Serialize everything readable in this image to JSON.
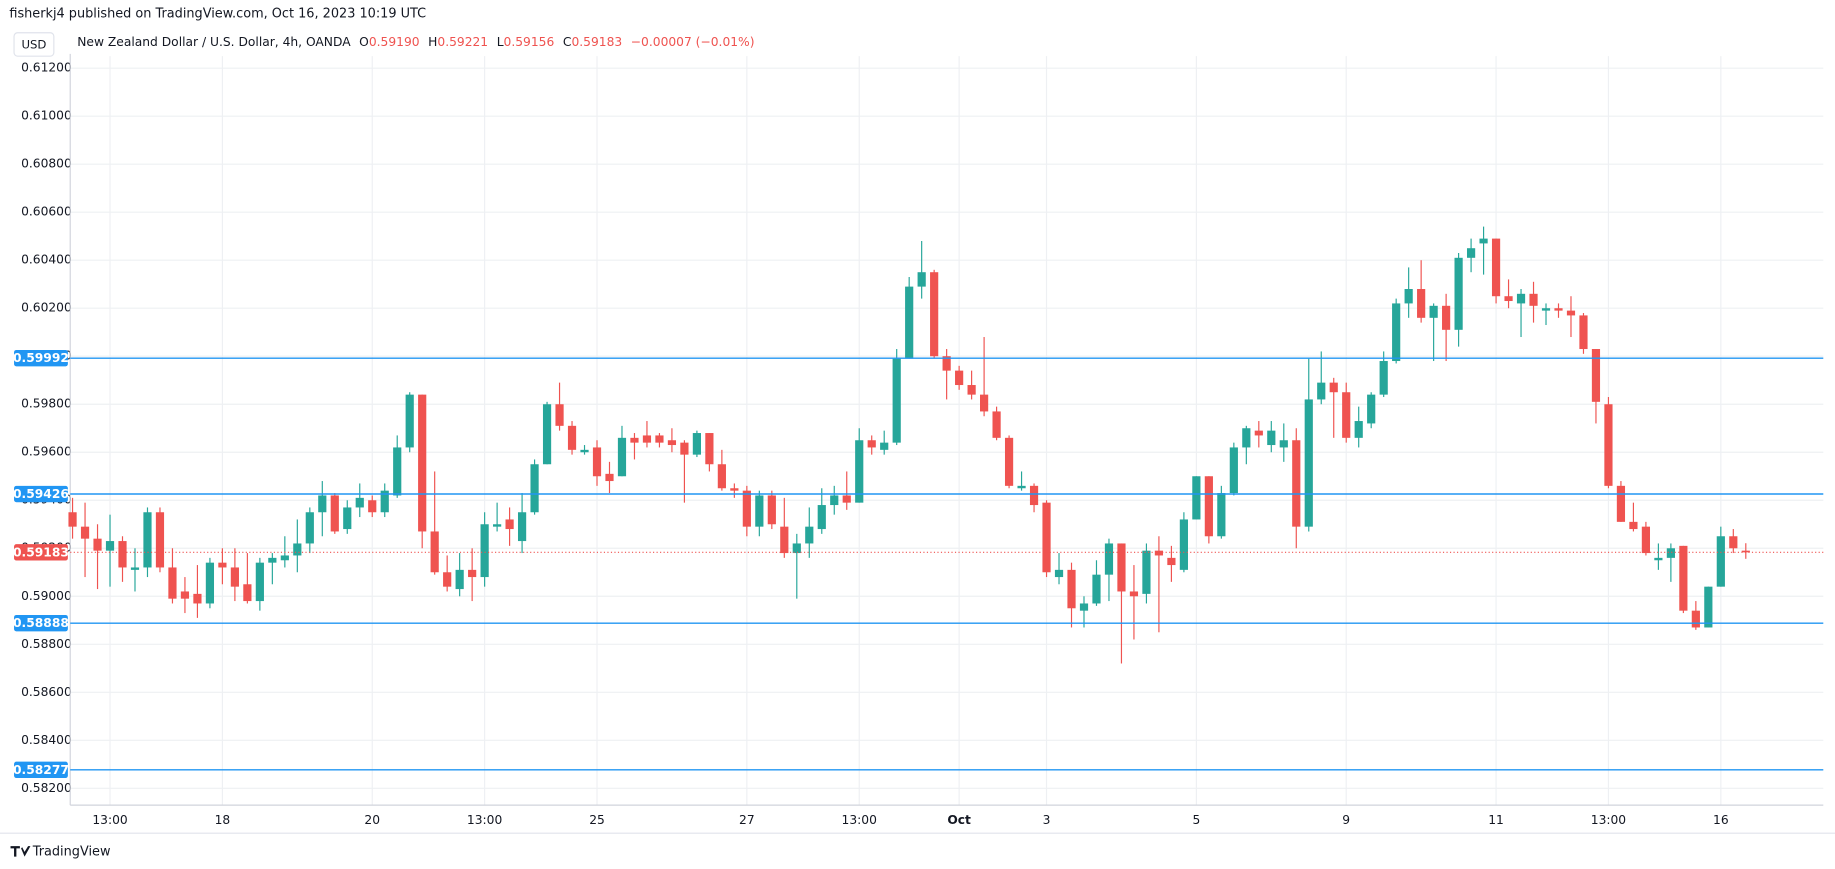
{
  "header": {
    "publisher": "fisherkj4 published on TradingView.com, Oct 16, 2023 10:19 UTC",
    "currency": "USD",
    "ohlc": [
      {
        "key": "O",
        "value": "0.59190"
      },
      {
        "key": "H",
        "value": "0.59221"
      },
      {
        "key": "L",
        "value": "0.59156"
      },
      {
        "key": "C",
        "value": "0.59183"
      }
    ],
    "change": "−0.00007 (−0.01%)",
    "footer": "TradingView"
  },
  "chart_data": {
    "type": "candlestick",
    "title": "New Zealand Dollar / U.S. Dollar, 4h, OANDA",
    "up_color": "#26a69a",
    "down_color": "#ef5350",
    "categories": [
      null,
      null,
      null,
      "13:00",
      null,
      null,
      null,
      null,
      null,
      null,
      null,
      null,
      "18",
      null,
      null,
      null,
      null,
      null,
      null,
      null,
      null,
      null,
      null,
      null,
      "20",
      null,
      null,
      null,
      null,
      null,
      null,
      null,
      null,
      "13:00",
      null,
      null,
      null,
      null,
      null,
      null,
      null,
      null,
      "25",
      null,
      null,
      null,
      null,
      null,
      null,
      null,
      null,
      null,
      null,
      null,
      "27",
      null,
      null,
      null,
      null,
      null,
      null,
      null,
      null,
      "13:00",
      null,
      null,
      null,
      null,
      null,
      null,
      null,
      "Oct",
      null,
      null,
      null,
      null,
      null,
      null,
      "3",
      null,
      null,
      null,
      null,
      null,
      null,
      null,
      null,
      null,
      null,
      null,
      "5",
      null,
      null,
      null,
      null,
      null,
      null,
      null,
      null,
      null,
      null,
      null,
      "9",
      null,
      null,
      null,
      null,
      null,
      null,
      null,
      null,
      null,
      null,
      null,
      "11",
      null,
      null,
      null,
      null,
      null,
      null,
      null,
      null,
      "13:00",
      null,
      null,
      null,
      null,
      null,
      null,
      null,
      null,
      "16",
      null,
      null
    ],
    "open": [
      0.5935,
      0.5929,
      0.5924,
      0.5919,
      0.5923,
      0.5911,
      0.5912,
      0.5935,
      0.5912,
      0.5902,
      0.5901,
      0.5897,
      0.5914,
      0.5912,
      0.5905,
      0.5898,
      0.5914,
      0.5915,
      0.5917,
      0.5922,
      0.5935,
      0.5942,
      0.5928,
      0.5937,
      0.594,
      0.5935,
      0.5942,
      0.5962,
      0.5984,
      0.5927,
      0.591,
      0.5903,
      0.5911,
      0.5908,
      0.5929,
      0.5932,
      0.5923,
      0.5935,
      0.5955,
      0.598,
      0.5971,
      0.596,
      0.5962,
      0.5951,
      0.595,
      0.5966,
      0.5967,
      0.5967,
      0.5965,
      0.5964,
      0.5959,
      0.5968,
      0.5955,
      0.5945,
      0.5944,
      0.5929,
      0.5942,
      0.5929,
      0.5918,
      0.5922,
      0.5928,
      0.5938,
      0.5942,
      0.5939,
      0.5965,
      0.5961,
      0.5964,
      0.5999,
      0.6029,
      0.6035,
      0.6,
      0.5994,
      0.5988,
      0.5984,
      0.5977,
      0.5966,
      0.5945,
      0.5946,
      0.5939,
      0.5908,
      0.5911,
      0.5894,
      0.5897,
      0.5909,
      0.5922,
      0.5902,
      0.5901,
      0.5919,
      0.5916,
      0.5911,
      0.5932,
      0.595,
      0.5925,
      0.5943,
      0.5962,
      0.5969,
      0.5963,
      0.5962,
      0.5965,
      0.5929,
      0.5982,
      0.5989,
      0.5985,
      0.5966,
      0.5972,
      0.5984,
      0.5998,
      0.6022,
      0.6028,
      0.6016,
      0.6021,
      0.6011,
      0.6041,
      0.6047,
      0.6049,
      0.6025,
      0.6022,
      0.6026,
      0.6019,
      0.602,
      0.6019,
      0.6017,
      0.6003,
      0.598,
      0.5946,
      0.5931,
      0.5929,
      0.5915,
      0.5916,
      0.5921,
      0.5894,
      0.5887,
      0.5904,
      0.5925,
      0.5919
    ],
    "high": [
      0.5941,
      0.5939,
      0.593,
      0.5934,
      0.5925,
      0.592,
      0.5937,
      0.5937,
      0.592,
      0.5908,
      0.5913,
      0.5916,
      0.592,
      0.592,
      0.5918,
      0.5916,
      0.5918,
      0.5925,
      0.5932,
      0.5937,
      0.5948,
      0.5943,
      0.594,
      0.5947,
      0.5942,
      0.5947,
      0.5967,
      0.5985,
      0.5984,
      0.5952,
      0.5917,
      0.5918,
      0.592,
      0.5935,
      0.5939,
      0.5937,
      0.5943,
      0.5957,
      0.5981,
      0.5989,
      0.5973,
      0.5963,
      0.5965,
      0.5956,
      0.5971,
      0.5968,
      0.5973,
      0.5968,
      0.597,
      0.5965,
      0.5969,
      0.5968,
      0.5961,
      0.5947,
      0.5946,
      0.5944,
      0.5944,
      0.5941,
      0.5926,
      0.5937,
      0.5945,
      0.5946,
      0.5952,
      0.597,
      0.5967,
      0.5969,
      0.6003,
      0.6033,
      0.6048,
      0.6036,
      0.6003,
      0.5996,
      0.5994,
      0.6008,
      0.5979,
      0.5967,
      0.5952,
      0.5947,
      0.594,
      0.5918,
      0.5914,
      0.59,
      0.5915,
      0.5924,
      0.5922,
      0.5913,
      0.5922,
      0.5925,
      0.5921,
      0.5935,
      0.595,
      0.595,
      0.5946,
      0.5964,
      0.5971,
      0.5973,
      0.5973,
      0.5972,
      0.597,
      0.5999,
      0.6002,
      0.5991,
      0.5989,
      0.5979,
      0.5985,
      0.6002,
      0.6024,
      0.6037,
      0.604,
      0.6022,
      0.6026,
      0.6043,
      0.6049,
      0.6054,
      0.6049,
      0.6032,
      0.6028,
      0.6031,
      0.6022,
      0.6022,
      0.6025,
      0.6018,
      0.6003,
      0.5983,
      0.5948,
      0.5939,
      0.5931,
      0.5922,
      0.5922,
      0.5921,
      0.5898,
      0.5904,
      0.5929,
      0.5928,
      0.59221
    ],
    "low": [
      0.5924,
      0.5908,
      0.5903,
      0.5904,
      0.5906,
      0.5902,
      0.5908,
      0.591,
      0.5897,
      0.5893,
      0.5891,
      0.5895,
      0.5905,
      0.5898,
      0.5897,
      0.5894,
      0.5905,
      0.5912,
      0.591,
      0.5918,
      0.5925,
      0.5926,
      0.5926,
      0.5933,
      0.5933,
      0.5933,
      0.5941,
      0.596,
      0.592,
      0.5909,
      0.5902,
      0.59,
      0.5898,
      0.5904,
      0.5927,
      0.5921,
      0.5918,
      0.5934,
      0.5955,
      0.5969,
      0.5959,
      0.5959,
      0.5946,
      0.5943,
      0.595,
      0.5957,
      0.5962,
      0.5962,
      0.596,
      0.5939,
      0.5958,
      0.5952,
      0.5944,
      0.5941,
      0.5925,
      0.5925,
      0.5928,
      0.5916,
      0.5899,
      0.5916,
      0.5926,
      0.5934,
      0.5936,
      0.5939,
      0.5959,
      0.5959,
      0.5963,
      0.5999,
      0.6024,
      0.5999,
      0.5982,
      0.5986,
      0.5982,
      0.5975,
      0.5965,
      0.5945,
      0.5944,
      0.5935,
      0.5908,
      0.5905,
      0.5887,
      0.5887,
      0.5896,
      0.5898,
      0.5872,
      0.5882,
      0.5897,
      0.5885,
      0.5906,
      0.591,
      0.5932,
      0.5922,
      0.5924,
      0.5942,
      0.5955,
      0.5962,
      0.596,
      0.5956,
      0.592,
      0.5927,
      0.598,
      0.5966,
      0.5964,
      0.5962,
      0.597,
      0.5983,
      0.5997,
      0.6016,
      0.6014,
      0.5998,
      0.5998,
      0.6004,
      0.6035,
      0.6034,
      0.6022,
      0.602,
      0.6008,
      0.6014,
      0.6013,
      0.6016,
      0.6008,
      0.6001,
      0.5972,
      0.5945,
      0.5931,
      0.5927,
      0.5917,
      0.5911,
      0.5906,
      0.5893,
      0.5886,
      0.5887,
      0.5904,
      0.5918,
      0.59156
    ],
    "close": [
      0.5929,
      0.5924,
      0.5919,
      0.5923,
      0.5912,
      0.5912,
      0.5935,
      0.5912,
      0.5899,
      0.5899,
      0.5897,
      0.5914,
      0.5912,
      0.5904,
      0.5898,
      0.5914,
      0.5916,
      0.5917,
      0.5922,
      0.5935,
      0.5942,
      0.5927,
      0.5937,
      0.5941,
      0.5935,
      0.5944,
      0.5962,
      0.5984,
      0.5927,
      0.591,
      0.5904,
      0.5911,
      0.5908,
      0.593,
      0.593,
      0.5928,
      0.5935,
      0.5955,
      0.598,
      0.5971,
      0.5961,
      0.5961,
      0.595,
      0.5948,
      0.5966,
      0.5964,
      0.5964,
      0.5964,
      0.5963,
      0.5959,
      0.5968,
      0.5955,
      0.5945,
      0.5944,
      0.5929,
      0.5942,
      0.593,
      0.5918,
      0.5922,
      0.5929,
      0.5938,
      0.5942,
      0.5939,
      0.5965,
      0.5962,
      0.5964,
      0.5999,
      0.6029,
      0.6035,
      0.6,
      0.5994,
      0.5988,
      0.5984,
      0.5977,
      0.5966,
      0.5946,
      0.5946,
      0.5938,
      0.591,
      0.5911,
      0.5895,
      0.5897,
      0.5909,
      0.5922,
      0.5902,
      0.59,
      0.5919,
      0.5917,
      0.5913,
      0.5932,
      0.595,
      0.5925,
      0.5943,
      0.5962,
      0.597,
      0.5967,
      0.5969,
      0.5965,
      0.5929,
      0.5982,
      0.5989,
      0.5985,
      0.5966,
      0.5973,
      0.5984,
      0.5998,
      0.6022,
      0.6028,
      0.6016,
      0.6021,
      0.6011,
      0.6041,
      0.6045,
      0.6049,
      0.6025,
      0.6023,
      0.6026,
      0.6021,
      0.602,
      0.6019,
      0.6017,
      0.6003,
      0.5981,
      0.5946,
      0.5931,
      0.5928,
      0.5918,
      0.5916,
      0.592,
      0.5894,
      0.5887,
      0.5904,
      0.5925,
      0.592,
      0.59183
    ],
    "ylim": [
      0.5813,
      0.6125
    ],
    "yticks": [
      {
        "value": 0.612,
        "label": "0.61200"
      },
      {
        "value": 0.61,
        "label": "0.61000"
      },
      {
        "value": 0.608,
        "label": "0.60800"
      },
      {
        "value": 0.606,
        "label": "0.60600"
      },
      {
        "value": 0.604,
        "label": "0.60400"
      },
      {
        "value": 0.602,
        "label": "0.60200"
      },
      {
        "value": 0.6,
        "label": "0.60000"
      },
      {
        "value": 0.598,
        "label": "0.59800"
      },
      {
        "value": 0.596,
        "label": "0.59600"
      },
      {
        "value": 0.594,
        "label": "0.59400"
      },
      {
        "value": 0.592,
        "label": "0.59200"
      },
      {
        "value": 0.59,
        "label": "0.59000"
      },
      {
        "value": 0.588,
        "label": "0.58800"
      },
      {
        "value": 0.586,
        "label": "0.58600"
      },
      {
        "value": 0.584,
        "label": "0.58400"
      },
      {
        "value": 0.582,
        "label": "0.58200"
      }
    ],
    "grid": true,
    "levels": [
      0.59992,
      0.59426,
      0.58888,
      0.58277
    ],
    "level_color": "#2196f3",
    "last_price": 0.59183,
    "last_price_color": "#ef5350"
  }
}
